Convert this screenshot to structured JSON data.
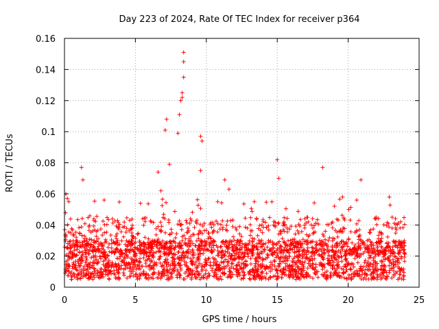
{
  "chart_data": {
    "type": "scatter",
    "title": "Day 223 of 2024, Rate Of TEC Index for receiver p364",
    "xlabel": "GPS time / hours",
    "ylabel": "ROTI / TECUs",
    "xlim": [
      0,
      25
    ],
    "ylim": [
      0,
      0.16
    ],
    "xticks": [
      0,
      5,
      10,
      15,
      20,
      25
    ],
    "xtick_labels": [
      "0",
      "5",
      "10",
      "15",
      "20",
      "25"
    ],
    "yticks": [
      0,
      0.02,
      0.04,
      0.06,
      0.08,
      0.1,
      0.12,
      0.14,
      0.16
    ],
    "ytick_labels": [
      "0",
      "0.02",
      "0.04",
      "0.06",
      "0.08",
      "0.1",
      "0.12",
      "0.14",
      "0.16"
    ],
    "grid": true,
    "marker": "+",
    "color": "#ff0000",
    "x_range_of_data": [
      0,
      24
    ],
    "typical_band": [
      0.005,
      0.03
    ],
    "series": [
      {
        "name": "ROTI",
        "x": [
          0.1,
          0.2,
          0.3,
          1.2,
          1.3,
          2.8,
          4.6,
          6.6,
          6.8,
          7.1,
          7.2,
          7.4,
          8.0,
          8.1,
          8.2,
          8.3,
          8.3,
          8.4,
          8.4,
          8.4,
          9.6,
          9.7,
          9.6,
          10.8,
          11.3,
          11.6,
          15.0,
          15.1,
          18.2,
          19.6,
          20.6,
          20.9,
          22.9,
          23.1,
          23.4
        ],
        "y": [
          0.06,
          0.057,
          0.055,
          0.077,
          0.069,
          0.056,
          0.043,
          0.074,
          0.062,
          0.101,
          0.108,
          0.079,
          0.099,
          0.111,
          0.12,
          0.125,
          0.122,
          0.135,
          0.145,
          0.151,
          0.097,
          0.094,
          0.075,
          0.055,
          0.069,
          0.063,
          0.082,
          0.07,
          0.077,
          0.058,
          0.056,
          0.069,
          0.058,
          0.045,
          0.037
        ]
      }
    ]
  }
}
